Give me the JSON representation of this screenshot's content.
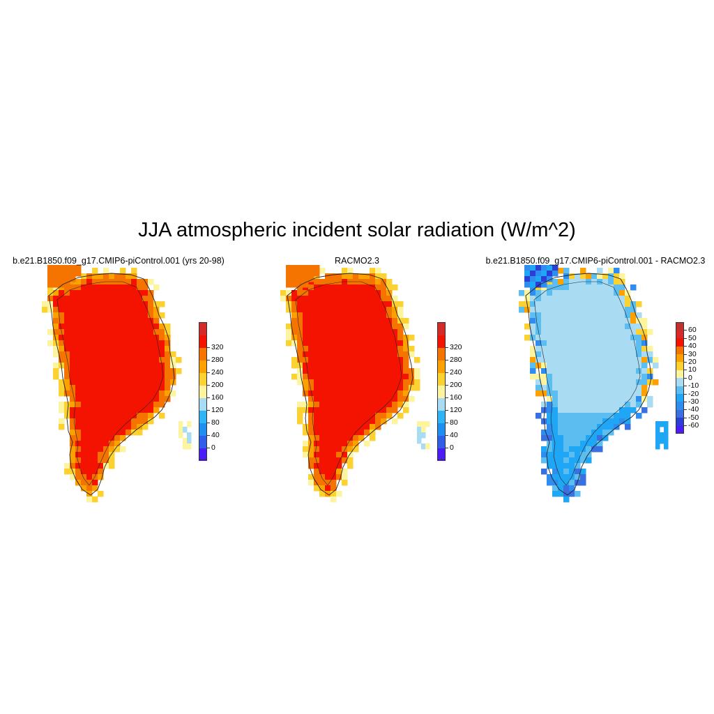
{
  "title": "JJA atmospheric incident solar radiation (W/m^2)",
  "panels": [
    {
      "title": "b.e21.B1850.f09_g17.CMIP6-piControl.001 (yrs 20-98)",
      "kind": "model",
      "colorbar": {
        "labels": [
          "0",
          "40",
          "80",
          "120",
          "160",
          "200",
          "240",
          "280",
          "320"
        ],
        "colors": [
          "#4b1cf5",
          "#2f5fe8",
          "#1e8ef0",
          "#2fb4f5",
          "#a9dcf2",
          "#fdf4a0",
          "#fcd232",
          "#fca100",
          "#f57400",
          "#f41300",
          "#d42a2a"
        ]
      }
    },
    {
      "title": "RACMO2.3",
      "kind": "reference",
      "colorbar": {
        "labels": [
          "0",
          "40",
          "80",
          "120",
          "160",
          "200",
          "240",
          "280",
          "320"
        ],
        "colors": [
          "#4b1cf5",
          "#2f5fe8",
          "#1e8ef0",
          "#2fb4f5",
          "#a9dcf2",
          "#fdf4a0",
          "#fcd232",
          "#fca100",
          "#f57400",
          "#f41300",
          "#d42a2a"
        ]
      }
    },
    {
      "title": "b.e21.B1850.f09_g17.CMIP6-piControl.001 - RACMO2.3",
      "kind": "difference",
      "colorbar": {
        "labels": [
          "-60",
          "-50",
          "-40",
          "-30",
          "-20",
          "-10",
          "0",
          "10",
          "20",
          "30",
          "40",
          "50",
          "60"
        ],
        "colors": [
          "#4b1cf5",
          "#2b3fd6",
          "#3a6fe0",
          "#2f8df0",
          "#1fa6f5",
          "#5cbef0",
          "#a9dcf2",
          "#fdf4a0",
          "#fcd232",
          "#fca100",
          "#f57400",
          "#f41300",
          "#d42a2a",
          "#c0302f"
        ]
      }
    }
  ]
}
